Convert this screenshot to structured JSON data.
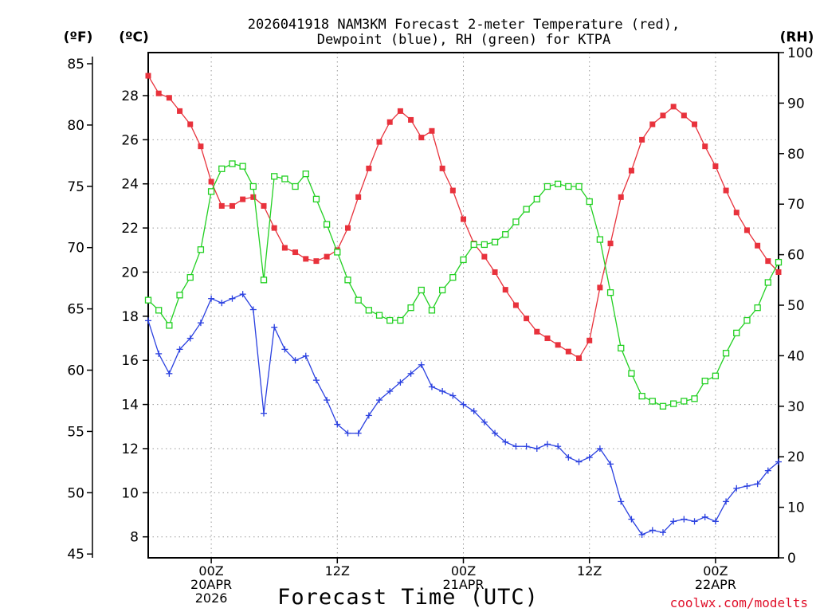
{
  "chart_data": {
    "type": "line",
    "title_line1": "2026041918 NAM3KM Forecast 2-meter Temperature (red),",
    "title_line2": "Dewpoint (blue), RH (green) for KTPA",
    "xlabel": "Forecast Time (UTC)",
    "credit": "coolwx.com/modelts",
    "units": {
      "fahrenheit": "(ºF)",
      "celsius": "(ºC)",
      "rh": "(RH)"
    },
    "x_range_hours": [
      18,
      78
    ],
    "x_ticks": [
      {
        "hour": 24,
        "lines": [
          "00Z",
          "20APR",
          "2026"
        ]
      },
      {
        "hour": 36,
        "lines": [
          "12Z"
        ]
      },
      {
        "hour": 48,
        "lines": [
          "00Z",
          "21APR"
        ]
      },
      {
        "hour": 60,
        "lines": [
          "12Z"
        ]
      },
      {
        "hour": 72,
        "lines": [
          "00Z",
          "22APR"
        ]
      }
    ],
    "celsius_axis": {
      "range": [
        7.05,
        29.95
      ],
      "ticks": [
        8,
        10,
        12,
        14,
        16,
        18,
        20,
        22,
        24,
        26,
        28
      ]
    },
    "fahrenheit_axis": {
      "range": [
        44.69,
        85.91
      ],
      "ticks": [
        45,
        50,
        55,
        60,
        65,
        70,
        75,
        80,
        85
      ]
    },
    "rh_axis": {
      "range": [
        0,
        100
      ],
      "ticks": [
        0,
        10,
        20,
        30,
        40,
        50,
        60,
        70,
        80,
        90,
        100
      ]
    },
    "series": [
      {
        "name": "2-meter Temperature",
        "axis": "celsius",
        "color": "#e8323c",
        "marker": "filled-square",
        "x": [
          18,
          19,
          20,
          21,
          22,
          23,
          24,
          25,
          26,
          27,
          28,
          29,
          30,
          31,
          32,
          33,
          34,
          35,
          36,
          37,
          38,
          39,
          40,
          41,
          42,
          43,
          44,
          45,
          46,
          47,
          48,
          49,
          50,
          51,
          52,
          53,
          54,
          55,
          56,
          57,
          58,
          59,
          60,
          61,
          62,
          63,
          64,
          65,
          66,
          67,
          68,
          69,
          70,
          71,
          72,
          73,
          74,
          75,
          76,
          77,
          78
        ],
        "values": [
          28.9,
          28.1,
          27.9,
          27.3,
          26.7,
          25.7,
          24.1,
          23.0,
          23.0,
          23.3,
          23.4,
          23.0,
          22.0,
          21.1,
          20.9,
          20.6,
          20.5,
          20.7,
          21.0,
          22.0,
          23.4,
          24.7,
          25.9,
          26.8,
          27.3,
          26.9,
          26.1,
          26.4,
          24.7,
          23.7,
          22.4,
          21.3,
          20.7,
          20.0,
          19.2,
          18.5,
          17.9,
          17.3,
          17.0,
          16.7,
          16.4,
          16.1,
          16.9,
          19.3,
          21.3,
          23.4,
          24.6,
          26.0,
          26.7,
          27.1,
          27.5,
          27.1,
          26.7,
          25.7,
          24.8,
          23.7,
          22.7,
          21.9,
          21.2,
          20.5,
          20.0
        ]
      },
      {
        "name": "Dewpoint",
        "axis": "celsius",
        "color": "#2a40e0",
        "marker": "plus",
        "x": [
          18,
          19,
          20,
          21,
          22,
          23,
          24,
          25,
          26,
          27,
          28,
          29,
          30,
          31,
          32,
          33,
          34,
          35,
          36,
          37,
          38,
          39,
          40,
          41,
          42,
          43,
          44,
          45,
          46,
          47,
          48,
          49,
          50,
          51,
          52,
          53,
          54,
          55,
          56,
          57,
          58,
          59,
          60,
          61,
          62,
          63,
          64,
          65,
          66,
          67,
          68,
          69,
          70,
          71,
          72,
          73,
          74,
          75,
          76,
          77,
          78
        ],
        "values": [
          17.8,
          16.3,
          15.4,
          16.5,
          17.0,
          17.7,
          18.8,
          18.6,
          18.8,
          19.0,
          18.3,
          13.6,
          17.5,
          16.5,
          16.0,
          16.2,
          15.1,
          14.2,
          13.1,
          12.7,
          12.7,
          13.5,
          14.2,
          14.6,
          15.0,
          15.4,
          15.8,
          14.8,
          14.6,
          14.4,
          14.0,
          13.7,
          13.2,
          12.7,
          12.3,
          12.1,
          12.1,
          12.0,
          12.2,
          12.1,
          11.6,
          11.4,
          11.6,
          12.0,
          11.3,
          9.6,
          8.8,
          8.1,
          8.3,
          8.2,
          8.7,
          8.8,
          8.7,
          8.9,
          8.7,
          9.6,
          10.2,
          10.3,
          10.4,
          11.0,
          11.4
        ]
      },
      {
        "name": "RH",
        "axis": "rh",
        "color": "#22d022",
        "marker": "open-square",
        "x": [
          18,
          19,
          20,
          21,
          22,
          23,
          24,
          25,
          26,
          27,
          28,
          29,
          30,
          31,
          32,
          33,
          34,
          35,
          36,
          37,
          38,
          39,
          40,
          41,
          42,
          43,
          44,
          45,
          46,
          47,
          48,
          49,
          50,
          51,
          52,
          53,
          54,
          55,
          56,
          57,
          58,
          59,
          60,
          61,
          62,
          63,
          64,
          65,
          66,
          67,
          68,
          69,
          70,
          71,
          72,
          73,
          74,
          75,
          76,
          77,
          78
        ],
        "values": [
          51,
          49,
          46,
          52,
          55.5,
          61,
          72.5,
          77,
          78,
          77.5,
          73.5,
          55,
          75.5,
          75,
          73.5,
          76,
          71,
          66,
          60.5,
          55,
          51,
          49,
          48,
          47,
          47,
          49.5,
          53,
          49,
          53,
          55.5,
          59,
          62,
          62,
          62.5,
          64,
          66.5,
          69,
          71,
          73.5,
          74,
          73.5,
          73.5,
          70.5,
          63,
          52.5,
          41.5,
          36.5,
          32,
          31,
          30,
          30.5,
          31,
          31.5,
          35,
          36,
          40.5,
          44.5,
          47,
          49.5,
          54.5,
          58.5
        ]
      }
    ]
  }
}
